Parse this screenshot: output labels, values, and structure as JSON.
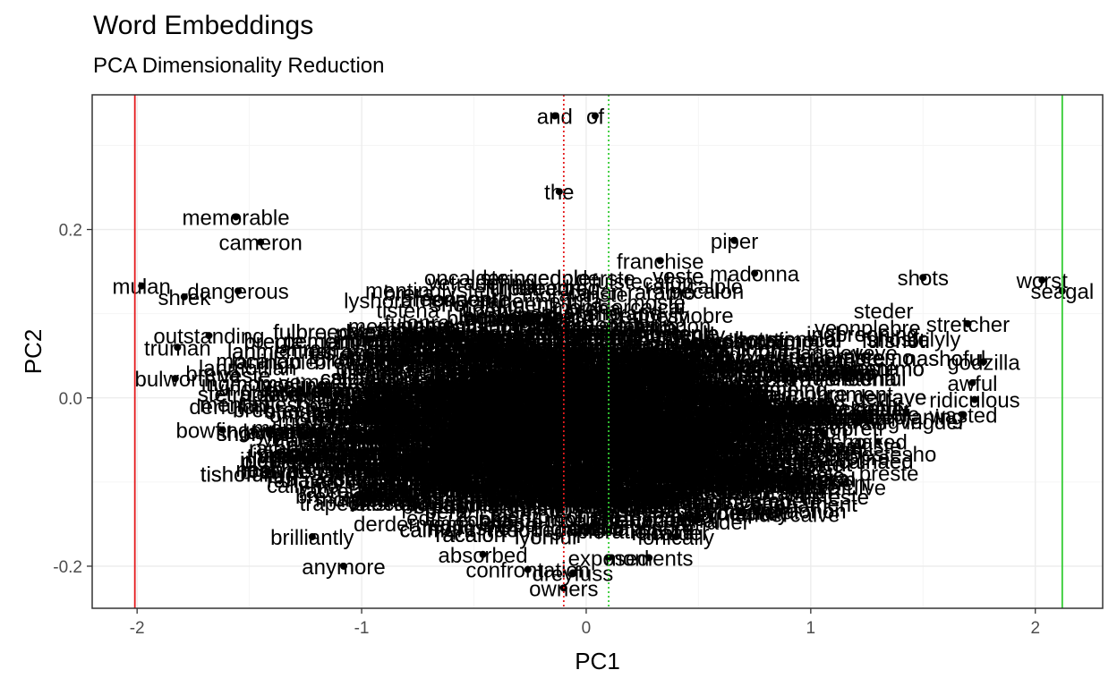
{
  "title": "Word Embeddings",
  "subtitle": "PCA Dimensionality Reduction",
  "colors": {
    "panel_border": "#333333",
    "grid_major": "#ebebeb",
    "grid_minor": "#f5f5f5",
    "point": "#000000",
    "red_line": "#e41a1c",
    "green_line": "#33cc33"
  },
  "chart_data": {
    "type": "scatter",
    "xlabel": "PC1",
    "ylabel": "PC2",
    "xlim": [
      -2.2,
      2.3
    ],
    "ylim": [
      -0.25,
      0.36
    ],
    "x_ticks": [
      {
        "value": -2,
        "label": "-2"
      },
      {
        "value": -1,
        "label": "-1"
      },
      {
        "value": 0,
        "label": "0"
      },
      {
        "value": 1,
        "label": "1"
      },
      {
        "value": 2,
        "label": "2"
      }
    ],
    "y_ticks": [
      {
        "value": -0.2,
        "label": "-0.2"
      },
      {
        "value": 0.0,
        "label": "0.0"
      },
      {
        "value": 0.2,
        "label": "0.2"
      }
    ],
    "grid": true,
    "vlines": [
      {
        "x": -2.01,
        "style": "solid",
        "color": "red"
      },
      {
        "x": 2.12,
        "style": "solid",
        "color": "green"
      },
      {
        "x": -0.1,
        "style": "dotted",
        "color": "red"
      },
      {
        "x": 0.1,
        "style": "dotted",
        "color": "green"
      }
    ],
    "labeled_points": [
      {
        "x": -0.14,
        "y": 0.335,
        "label": "and"
      },
      {
        "x": 0.04,
        "y": 0.335,
        "label": "of"
      },
      {
        "x": -0.12,
        "y": 0.245,
        "label": "the"
      },
      {
        "x": -1.56,
        "y": 0.215,
        "label": "memorable"
      },
      {
        "x": 0.66,
        "y": 0.187,
        "label": "piper"
      },
      {
        "x": -1.45,
        "y": 0.185,
        "label": "cameron"
      },
      {
        "x": 0.75,
        "y": 0.148,
        "label": "madonna"
      },
      {
        "x": 0.33,
        "y": 0.163,
        "label": "franchise"
      },
      {
        "x": 1.5,
        "y": 0.143,
        "label": "shots"
      },
      {
        "x": 2.03,
        "y": 0.14,
        "label": "worst"
      },
      {
        "x": 2.12,
        "y": 0.127,
        "label": "seagal"
      },
      {
        "x": -1.98,
        "y": 0.133,
        "label": "mulan"
      },
      {
        "x": -1.79,
        "y": 0.12,
        "label": "shrek"
      },
      {
        "x": -1.55,
        "y": 0.127,
        "label": "dangerous"
      },
      {
        "x": 1.7,
        "y": 0.088,
        "label": "stretcher"
      },
      {
        "x": -1.68,
        "y": 0.074,
        "label": "outstanding"
      },
      {
        "x": -1.82,
        "y": 0.06,
        "label": "truman"
      },
      {
        "x": 1.77,
        "y": 0.043,
        "label": "godzilla"
      },
      {
        "x": -1.83,
        "y": 0.023,
        "label": "bulworth"
      },
      {
        "x": 1.72,
        "y": 0.018,
        "label": "awful"
      },
      {
        "x": 1.73,
        "y": -0.002,
        "label": "ridiculous"
      },
      {
        "x": 1.68,
        "y": -0.02,
        "label": "wasted"
      },
      {
        "x": -1.62,
        "y": -0.038,
        "label": "bowfinger"
      },
      {
        "x": -1.33,
        "y": -0.068,
        "label": "neeson"
      },
      {
        "x": 1.3,
        "y": -0.052,
        "label": "naked"
      },
      {
        "x": 0.92,
        "y": -0.1,
        "label": "naked"
      },
      {
        "x": 0.68,
        "y": -0.135,
        "label": "devil"
      },
      {
        "x": 0.43,
        "y": -0.145,
        "label": "national"
      },
      {
        "x": 0.4,
        "y": -0.165,
        "label": "ionically"
      },
      {
        "x": -1.22,
        "y": -0.165,
        "label": "brilliantly"
      },
      {
        "x": -0.46,
        "y": -0.186,
        "label": "absorbed"
      },
      {
        "x": 0.28,
        "y": -0.19,
        "label": "moments"
      },
      {
        "x": -1.08,
        "y": -0.2,
        "label": "anymore"
      },
      {
        "x": -0.26,
        "y": -0.204,
        "label": "confrontation"
      },
      {
        "x": -0.06,
        "y": -0.208,
        "label": "dreyfuss"
      },
      {
        "x": 0.1,
        "y": -0.19,
        "label": "exposed"
      },
      {
        "x": -0.1,
        "y": -0.226,
        "label": "owners"
      }
    ],
    "cloud": {
      "description_only": false,
      "center": [
        -0.05,
        0.0
      ],
      "x_spread": 1.45,
      "y_spread": 0.14
    }
  }
}
